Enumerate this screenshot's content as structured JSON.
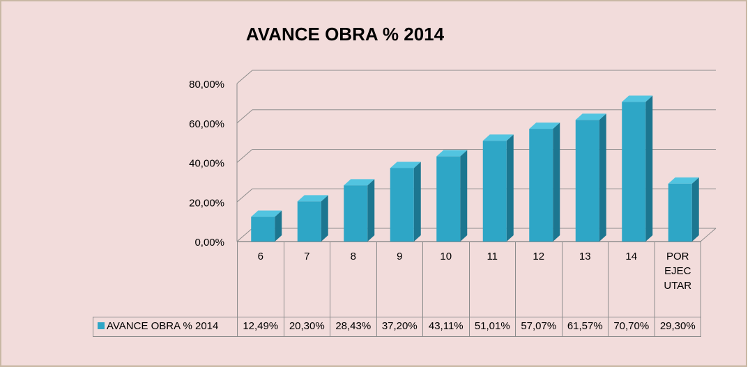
{
  "chart_data": {
    "type": "bar3d",
    "title": "AVANCE OBRA % 2014",
    "categories": [
      "6",
      "7",
      "8",
      "9",
      "10",
      "11",
      "12",
      "13",
      "14",
      "POR EJECUTAR"
    ],
    "series": [
      {
        "name": "AVANCE OBRA % 2014",
        "color": "#2ea6c6",
        "values": [
          12.49,
          20.3,
          28.43,
          37.2,
          43.11,
          51.01,
          57.07,
          61.57,
          70.7,
          29.3
        ],
        "value_labels": [
          "12,49%",
          "20,30%",
          "28,43%",
          "37,20%",
          "43,11%",
          "51,01%",
          "57,07%",
          "61,57%",
          "70,70%",
          "29,30%"
        ]
      }
    ],
    "ylim": [
      0,
      80
    ],
    "yticks": [
      {
        "value": 0,
        "label": "0,00%"
      },
      {
        "value": 20,
        "label": "20,00%"
      },
      {
        "value": 40,
        "label": "40,00%"
      },
      {
        "value": 60,
        "label": "60,00%"
      },
      {
        "value": 80,
        "label": "80,00%"
      }
    ],
    "grid": true
  }
}
